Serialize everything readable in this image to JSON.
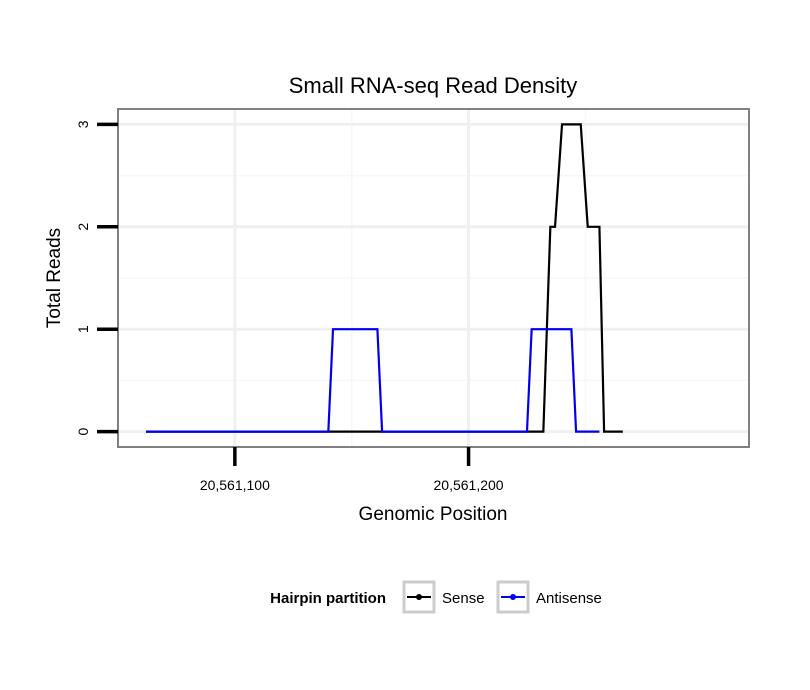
{
  "chart_data": {
    "type": "line",
    "title": "Small RNA-seq Read Density",
    "xlabel": "Genomic Position",
    "ylabel": "Total Reads",
    "xlim": [
      20561050,
      20561320
    ],
    "ylim": [
      -0.15,
      3.15
    ],
    "x_ticks": [
      20561100,
      20561200
    ],
    "x_tick_labels": [
      "20,561,100",
      "20,561,200"
    ],
    "y_ticks": [
      0,
      1,
      2,
      3
    ],
    "y_tick_labels": [
      "0",
      "1",
      "2",
      "3"
    ],
    "x_minor_gridlines": [
      20561050,
      20561150,
      20561250
    ],
    "y_minor_gridlines": [
      0.5,
      1.5,
      2.5
    ],
    "grid": true,
    "legend": {
      "title": "Hairpin partition",
      "position": "bottom"
    },
    "series": [
      {
        "name": "Sense",
        "color": "#000000",
        "x": [
          20561062,
          20561232,
          20561235,
          20561237,
          20561240,
          20561248,
          20561251,
          20561256,
          20561258,
          20561266
        ],
        "y": [
          0,
          0,
          2,
          2,
          3,
          3,
          2,
          2,
          0,
          0
        ]
      },
      {
        "name": "Antisense",
        "color": "#0000ee",
        "x": [
          20561062,
          20561140,
          20561142,
          20561161,
          20561163,
          20561225,
          20561227,
          20561244,
          20561246,
          20561256
        ],
        "y": [
          0,
          0,
          1,
          1,
          0,
          0,
          1,
          1,
          0,
          0
        ]
      }
    ]
  }
}
